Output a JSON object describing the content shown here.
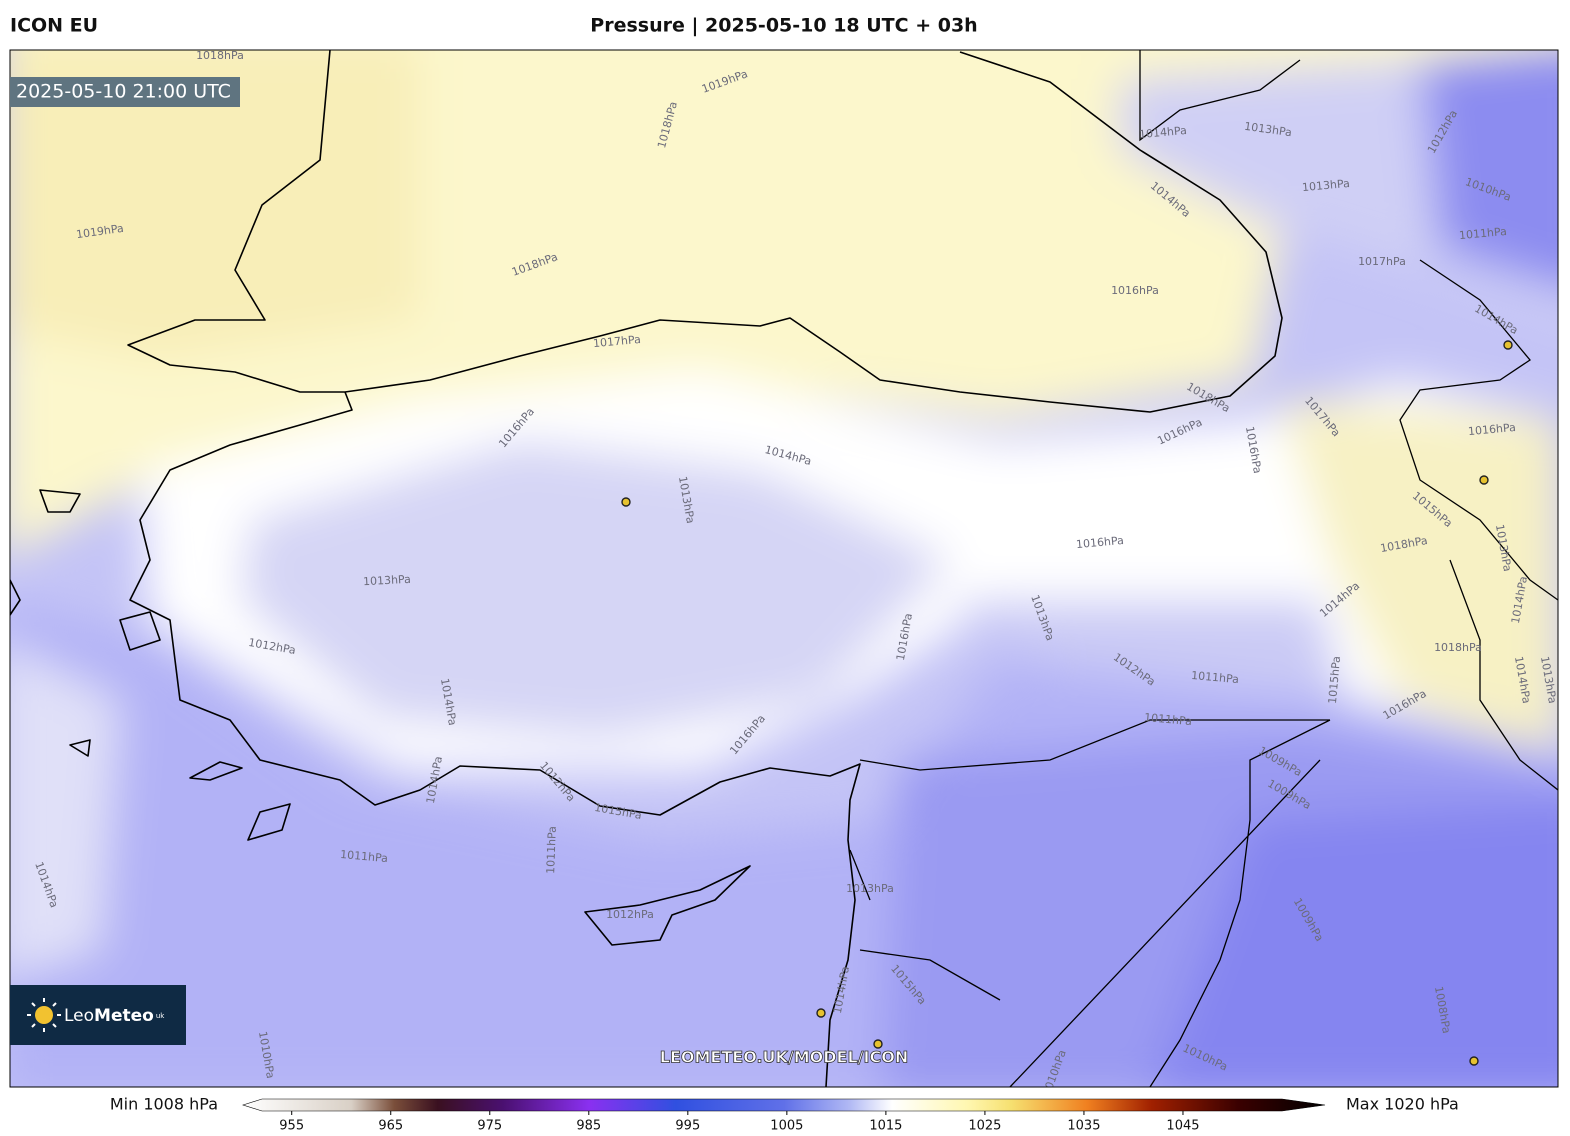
{
  "header": {
    "model": "ICON EU",
    "title": "Pressure | 2025-05-10 18 UTC + 03h"
  },
  "map": {
    "valid_time": "2025-05-10 21:00 UTC",
    "watermark": "LEOMETEO.UK/MODEL/ICON",
    "logo": {
      "name_light": "Leo",
      "name_bold": "Meteo",
      "suffix": "uk"
    },
    "contour_labels": [
      "1018hPa",
      "1019hPa",
      "1018hPa",
      "1019hPa",
      "1018hPa",
      "1017hPa",
      "1016hPa",
      "1013hPa",
      "1014hPa",
      "1013hPa",
      "1010hPa",
      "1011hPa",
      "1017hPa",
      "1014hPa",
      "1016hPa",
      "1014hPa",
      "1013hPa",
      "1013hPa",
      "1012hPa",
      "1014hPa",
      "1014hPa",
      "1012hPa",
      "1015hPa",
      "1011hPa",
      "1011hPa",
      "1018hPa",
      "1016hPa",
      "1017hPa",
      "1016hPa",
      "1016hPa",
      "1015hPa",
      "1016hPa",
      "1018hPa",
      "1014hPa",
      "1013hPa",
      "1016hPa",
      "1012hPa",
      "1011hPa",
      "1011hPa",
      "1015hPa",
      "1016hPa",
      "1018hPa",
      "1009hPa",
      "1009hPa",
      "1009hPa",
      "1008hPa",
      "1010hPa",
      "1010hPa",
      "1014hPa",
      "1013hPa",
      "1012hPa",
      "1016hPa",
      "1015hPa",
      "1014hPa",
      "1010hPa",
      "1013hPa",
      "1014hPa",
      "1014hPa",
      "1013hPa",
      "1012hPa",
      "1014hPa"
    ]
  },
  "colorbar": {
    "min_label": "Min 1008 hPa",
    "max_label": "Max 1020 hPa",
    "lim": [
      952,
      1055
    ],
    "ticks": [
      955,
      965,
      975,
      985,
      995,
      1005,
      1015,
      1025,
      1035,
      1045
    ]
  }
}
